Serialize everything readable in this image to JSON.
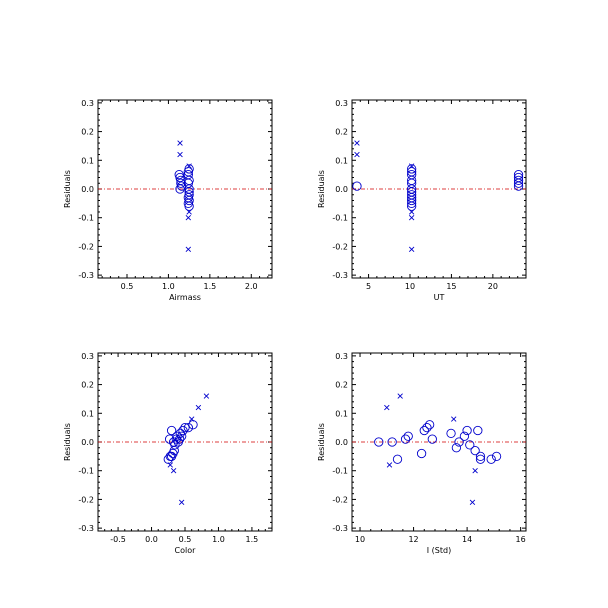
{
  "chart_data": [
    {
      "type": "scatter",
      "xlabel": "Airmass",
      "ylabel": "Residuals",
      "xlim": [
        0.15,
        2.25
      ],
      "ylim": [
        -0.31,
        0.31
      ],
      "xticks": [
        0.5,
        1.0,
        1.5,
        2.0
      ],
      "xticklabels": [
        "0.5",
        "1.0",
        "1.5",
        "2.0"
      ],
      "yticks": [
        -0.3,
        -0.2,
        -0.1,
        0.0,
        0.1,
        0.2,
        0.3
      ],
      "yticklabels": [
        "-0.3",
        "-0.2",
        "-0.1",
        "0.0",
        "0.1",
        "0.2",
        "0.3"
      ],
      "zero_line": 0.0,
      "series": [
        {
          "marker": "circle",
          "color": "#0000cc",
          "points": [
            [
              1.13,
              0.05
            ],
            [
              1.14,
              0.04
            ],
            [
              1.15,
              0.02
            ],
            [
              1.14,
              0.0
            ],
            [
              1.15,
              0.03
            ],
            [
              1.16,
              0.01
            ],
            [
              1.25,
              0.07
            ],
            [
              1.24,
              0.05
            ],
            [
              1.25,
              0.03
            ],
            [
              1.24,
              0.02
            ],
            [
              1.25,
              0.0
            ],
            [
              1.25,
              -0.01
            ],
            [
              1.24,
              -0.03
            ],
            [
              1.25,
              -0.04
            ],
            [
              1.24,
              -0.05
            ],
            [
              1.25,
              -0.06
            ],
            [
              1.24,
              0.06
            ],
            [
              1.25,
              -0.02
            ]
          ]
        },
        {
          "marker": "cross",
          "color": "#0000cc",
          "points": [
            [
              1.14,
              0.16
            ],
            [
              1.14,
              0.12
            ],
            [
              1.25,
              0.08
            ],
            [
              1.25,
              -0.08
            ],
            [
              1.24,
              -0.1
            ],
            [
              1.24,
              -0.21
            ]
          ]
        }
      ]
    },
    {
      "type": "scatter",
      "xlabel": "UT",
      "ylabel": "Residuals",
      "xlim": [
        3.0,
        24.0
      ],
      "ylim": [
        -0.31,
        0.31
      ],
      "xticks": [
        5,
        10,
        15,
        20
      ],
      "xticklabels": [
        "5",
        "10",
        "15",
        "20"
      ],
      "yticks": [
        -0.3,
        -0.2,
        -0.1,
        0.0,
        0.1,
        0.2,
        0.3
      ],
      "yticklabels": [
        "-0.3",
        "-0.2",
        "-0.1",
        "0.0",
        "0.1",
        "0.2",
        "0.3"
      ],
      "zero_line": 0.0,
      "series": [
        {
          "marker": "circle",
          "color": "#0000cc",
          "points": [
            [
              3.6,
              0.01
            ],
            [
              10.2,
              0.07
            ],
            [
              10.2,
              0.05
            ],
            [
              10.2,
              0.03
            ],
            [
              10.2,
              0.02
            ],
            [
              10.2,
              0.0
            ],
            [
              10.2,
              -0.01
            ],
            [
              10.2,
              -0.03
            ],
            [
              10.2,
              -0.04
            ],
            [
              10.2,
              -0.05
            ],
            [
              10.2,
              -0.06
            ],
            [
              10.2,
              0.06
            ],
            [
              10.2,
              -0.02
            ],
            [
              23.1,
              0.05
            ],
            [
              23.1,
              0.04
            ],
            [
              23.1,
              0.03
            ],
            [
              23.1,
              0.02
            ],
            [
              23.1,
              0.01
            ]
          ]
        },
        {
          "marker": "cross",
          "color": "#0000cc",
          "points": [
            [
              3.6,
              0.16
            ],
            [
              3.6,
              0.12
            ],
            [
              10.2,
              0.08
            ],
            [
              10.2,
              -0.08
            ],
            [
              10.2,
              -0.1
            ],
            [
              10.2,
              -0.21
            ]
          ]
        }
      ]
    },
    {
      "type": "scatter",
      "xlabel": "Color",
      "ylabel": "Residuals",
      "xlim": [
        -0.8,
        1.8
      ],
      "ylim": [
        -0.31,
        0.31
      ],
      "xticks": [
        -0.5,
        0.0,
        0.5,
        1.0,
        1.5
      ],
      "xticklabels": [
        "-0.5",
        "0.0",
        "0.5",
        "1.0",
        "1.5"
      ],
      "yticks": [
        -0.3,
        -0.2,
        -0.1,
        0.0,
        0.1,
        0.2,
        0.3
      ],
      "yticklabels": [
        "-0.3",
        "-0.2",
        "-0.1",
        "0.0",
        "0.1",
        "0.2",
        "0.3"
      ],
      "zero_line": 0.0,
      "series": [
        {
          "marker": "circle",
          "color": "#0000cc",
          "points": [
            [
              0.25,
              -0.06
            ],
            [
              0.28,
              -0.05
            ],
            [
              0.3,
              -0.05
            ],
            [
              0.32,
              -0.04
            ],
            [
              0.34,
              -0.03
            ],
            [
              0.33,
              0.0
            ],
            [
              0.35,
              -0.01
            ],
            [
              0.37,
              0.01
            ],
            [
              0.38,
              0.02
            ],
            [
              0.4,
              0.0
            ],
            [
              0.42,
              0.01
            ],
            [
              0.43,
              0.03
            ],
            [
              0.45,
              0.02
            ],
            [
              0.47,
              0.04
            ],
            [
              0.5,
              0.05
            ],
            [
              0.55,
              0.05
            ],
            [
              0.62,
              0.06
            ],
            [
              0.3,
              0.04
            ],
            [
              0.27,
              0.01
            ]
          ]
        },
        {
          "marker": "cross",
          "color": "#0000cc",
          "points": [
            [
              0.82,
              0.16
            ],
            [
              0.7,
              0.12
            ],
            [
              0.6,
              0.08
            ],
            [
              0.28,
              -0.08
            ],
            [
              0.33,
              -0.1
            ],
            [
              0.45,
              -0.21
            ]
          ]
        }
      ]
    },
    {
      "type": "scatter",
      "xlabel": "I (Std)",
      "ylabel": "Residuals",
      "xlim": [
        9.7,
        16.2
      ],
      "ylim": [
        -0.31,
        0.31
      ],
      "xticks": [
        10,
        12,
        14,
        16
      ],
      "xticklabels": [
        "10",
        "12",
        "14",
        "16"
      ],
      "yticks": [
        -0.3,
        -0.2,
        -0.1,
        0.0,
        0.1,
        0.2,
        0.3
      ],
      "yticklabels": [
        "-0.3",
        "-0.2",
        "-0.1",
        "0.0",
        "0.1",
        "0.2",
        "0.3"
      ],
      "zero_line": 0.0,
      "series": [
        {
          "marker": "circle",
          "color": "#0000cc",
          "points": [
            [
              10.7,
              0.0
            ],
            [
              11.2,
              0.0
            ],
            [
              11.4,
              -0.06
            ],
            [
              11.7,
              0.01
            ],
            [
              11.8,
              0.02
            ],
            [
              12.3,
              -0.04
            ],
            [
              12.4,
              0.04
            ],
            [
              12.5,
              0.05
            ],
            [
              12.6,
              0.06
            ],
            [
              12.7,
              0.01
            ],
            [
              13.4,
              0.03
            ],
            [
              13.6,
              -0.02
            ],
            [
              13.7,
              0.0
            ],
            [
              13.9,
              0.02
            ],
            [
              14.0,
              0.04
            ],
            [
              14.1,
              -0.01
            ],
            [
              14.3,
              -0.03
            ],
            [
              14.4,
              0.04
            ],
            [
              14.5,
              -0.05
            ],
            [
              14.9,
              -0.06
            ],
            [
              15.1,
              -0.05
            ],
            [
              14.5,
              -0.06
            ]
          ]
        },
        {
          "marker": "cross",
          "color": "#0000cc",
          "points": [
            [
              11.0,
              0.12
            ],
            [
              11.5,
              0.16
            ],
            [
              13.5,
              0.08
            ],
            [
              11.1,
              -0.08
            ],
            [
              14.3,
              -0.1
            ],
            [
              14.2,
              -0.21
            ]
          ]
        }
      ]
    }
  ]
}
